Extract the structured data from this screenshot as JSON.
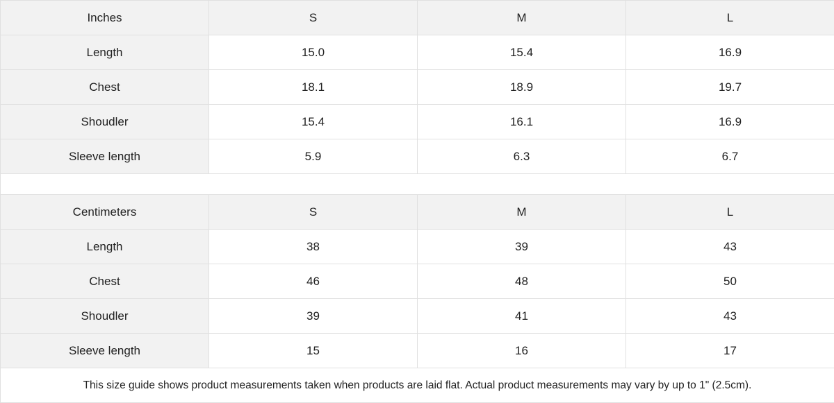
{
  "tables": [
    {
      "unit": "Inches",
      "sizes": [
        "S",
        "M",
        "L"
      ],
      "rows": [
        {
          "label": "Length",
          "values": [
            "15.0",
            "15.4",
            "16.9"
          ]
        },
        {
          "label": "Chest",
          "values": [
            "18.1",
            "18.9",
            "19.7"
          ]
        },
        {
          "label": "Shoudler",
          "values": [
            "15.4",
            "16.1",
            "16.9"
          ]
        },
        {
          "label": "Sleeve length",
          "values": [
            "5.9",
            "6.3",
            "6.7"
          ]
        }
      ]
    },
    {
      "unit": "Centimeters",
      "sizes": [
        "S",
        "M",
        "L"
      ],
      "rows": [
        {
          "label": "Length",
          "values": [
            "38",
            "39",
            "43"
          ]
        },
        {
          "label": "Chest",
          "values": [
            "46",
            "48",
            "50"
          ]
        },
        {
          "label": "Shoudler",
          "values": [
            "39",
            "41",
            "43"
          ]
        },
        {
          "label": "Sleeve length",
          "values": [
            "15",
            "16",
            "17"
          ]
        }
      ]
    }
  ],
  "note": "This size guide shows product measurements taken when products are laid flat.  Actual product measurements may vary by up to 1\" (2.5cm).",
  "colors": {
    "header_bg": "#f2f2f2",
    "border": "#e0e0e0",
    "text": "#222222"
  }
}
